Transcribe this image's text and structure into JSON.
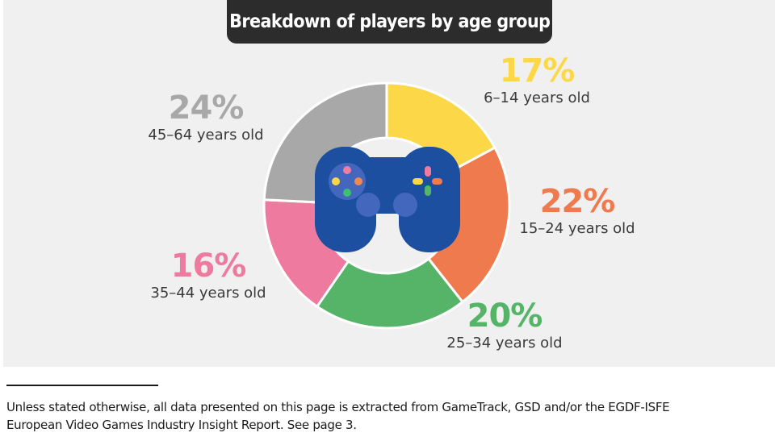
{
  "chart_data": {
    "type": "pie",
    "style": "donut",
    "title": "Breakdown of players by age group",
    "categories": [
      "6–14 years old",
      "15–24 years old",
      "25–34 years old",
      "35–44 years old",
      "45–64 years old"
    ],
    "values": [
      17,
      22,
      20,
      16,
      24
    ],
    "value_labels": [
      "17%",
      "22%",
      "20%",
      "16%",
      "24%"
    ],
    "colors": [
      "#fcd849",
      "#ef7a4d",
      "#55b467",
      "#ef7aa0",
      "#a8a8a8"
    ],
    "center_icon": "gamepad-icon"
  },
  "colors": {
    "panel_background": "#f0f0f0",
    "title_background": "#2c2c2c",
    "gamepad_body": "#1c4fa0",
    "gamepad_stick": "#4367bd"
  },
  "footnote": {
    "line1": "Unless stated otherwise, all data presented on this page is extracted from GameTrack, GSD and/or the EGDF-ISFE",
    "line2": "European Video Games Industry Insight Report. See page 3."
  }
}
